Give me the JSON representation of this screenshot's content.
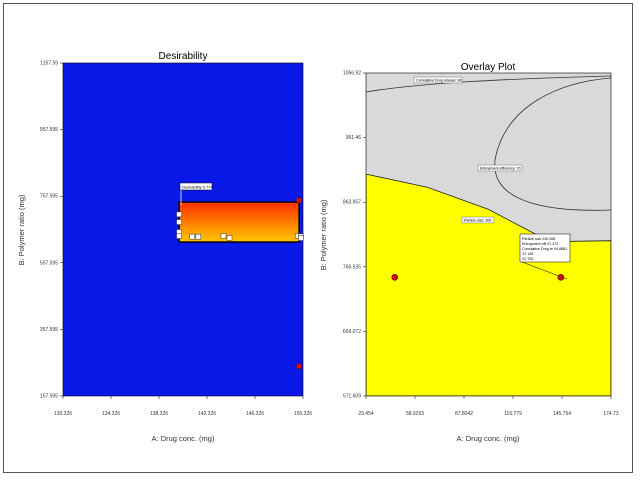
{
  "chart_data": [
    {
      "type": "contour",
      "title": "Desirability",
      "xlabel": "A: Drug conc. (mg)",
      "ylabel": "B: Polymer ratio (mg)",
      "xlim": [
        130.326,
        150.326
      ],
      "ylim": [
        157.595,
        1157.59
      ],
      "xticks": [
        "130.326",
        "134.326",
        "138.326",
        "142.326",
        "146.326",
        "150.326"
      ],
      "yticks": [
        "157.595",
        "357.595",
        "557.595",
        "757.595",
        "957.595",
        "1157.59"
      ],
      "background_color": "#0b19e8",
      "region": {
        "x": [
          140.0,
          150.0
        ],
        "y": [
          620.0,
          740.0
        ],
        "color_top": "#ff2e00",
        "color_bottom": "#ffc800"
      },
      "flag_label": "Desirability 0.774",
      "design_points": [
        {
          "x": 150.0,
          "y": 745.0
        },
        {
          "x": 150.0,
          "y": 247.0
        }
      ],
      "markers": [
        {
          "x": 140.0,
          "y": 703.0
        },
        {
          "x": 140.0,
          "y": 680.0
        },
        {
          "x": 140.0,
          "y": 650.0
        },
        {
          "x": 140.0,
          "y": 638.0
        },
        {
          "x": 141.1,
          "y": 636.0
        },
        {
          "x": 141.6,
          "y": 636.0
        },
        {
          "x": 143.7,
          "y": 638.0
        },
        {
          "x": 149.9,
          "y": 638.0
        },
        {
          "x": 152.0,
          "y": 637.0
        },
        {
          "x": 144.2,
          "y": 632.0
        },
        {
          "x": 155.0,
          "y": 632.0
        }
      ],
      "grid": false,
      "legend": "none"
    },
    {
      "type": "overlay",
      "title": "Overlay Plot",
      "xlabel": "A: Drug conc. (mg)",
      "ylabel": "B: Polymer ratio (mg)",
      "xlim": [
        29.454,
        174.73
      ],
      "ylim": [
        571.609,
        1056.92
      ],
      "xticks": [
        "29.454",
        "58.9293",
        "87.8042",
        "116.779",
        "145.754",
        "174.73"
      ],
      "yticks": [
        "571.609",
        "669.072",
        "766.535",
        "863.957",
        "961.46",
        "1056.92"
      ],
      "feasible_color": "#ffff00",
      "infeasible_color": "#d9d9d9",
      "boundary_left_y": 905,
      "boundary_right_y": 805,
      "contour_labels": [
        "Cumulative Drug release: 90",
        "Entrapment efficiency: 70",
        "Particle size: 300"
      ],
      "flag_lines": [
        "Particle size  230.365",
        "Entrapment effi  47.472",
        "Cumulative Drug re 94.8883",
        "X1  145",
        "X2  750"
      ],
      "design_points": [
        {
          "x": 46.5,
          "y": 750.0
        },
        {
          "x": 145.0,
          "y": 750.0
        }
      ],
      "grid": false,
      "legend": "none"
    }
  ]
}
